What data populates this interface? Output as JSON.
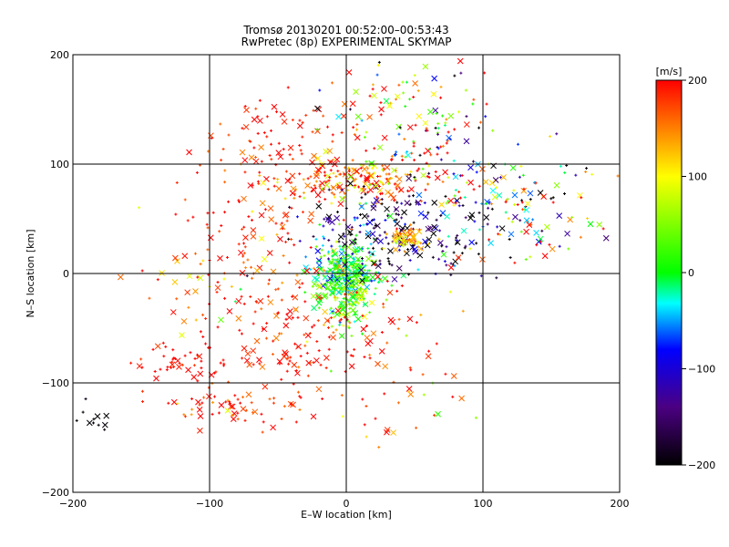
{
  "chart_data": {
    "type": "scatter",
    "title": "Tromsø 20130201 00:52:00–00:53:43",
    "subtitle": "RwPretec (8p) EXPERIMENTAL SKYMAP",
    "xlabel": "E–W location [km]",
    "ylabel": "N–S location [km]",
    "xlim": [
      -200,
      200
    ],
    "ylim": [
      -200,
      200
    ],
    "xticks": [
      "−200",
      "−100",
      "0",
      "100",
      "200"
    ],
    "yticks": [
      "−200",
      "−100",
      "0",
      "100",
      "200"
    ],
    "grid": true,
    "colorbar": {
      "label": "[m/s]",
      "min": -200,
      "max": 200,
      "ticks": [
        "200",
        "100",
        "0",
        "−100",
        "−200"
      ],
      "colormap": [
        "#000000",
        "#4b0082",
        "#0000ff",
        "#00ffff",
        "#00ff00",
        "#ffff00",
        "#ff0000"
      ]
    },
    "markers": [
      "x",
      "+"
    ],
    "clusters": [
      {
        "cx": 0,
        "cy": 0,
        "sx": 12,
        "sy": 15,
        "n": 320,
        "vmean": 5,
        "vsd": 40
      },
      {
        "cx": 0,
        "cy": -25,
        "sx": 8,
        "sy": 12,
        "n": 90,
        "vmean": 40,
        "vsd": 40
      },
      {
        "cx": 5,
        "cy": 85,
        "sx": 25,
        "sy": 10,
        "n": 180,
        "vmean": 160,
        "vsd": 50
      },
      {
        "cx": 40,
        "cy": 40,
        "sx": 35,
        "sy": 20,
        "n": 220,
        "vmean": -150,
        "vsd": 70
      },
      {
        "cx": 45,
        "cy": 32,
        "sx": 6,
        "sy": 5,
        "n": 60,
        "vmean": 140,
        "vsd": 30
      },
      {
        "cx": 60,
        "cy": 120,
        "sx": 25,
        "sy": 35,
        "n": 150,
        "vmean": 50,
        "vsd": 180
      },
      {
        "cx": 130,
        "cy": 60,
        "sx": 25,
        "sy": 25,
        "n": 120,
        "vmean": 50,
        "vsd": 200
      },
      {
        "cx": -50,
        "cy": 120,
        "sx": 35,
        "sy": 25,
        "n": 80,
        "vmean": 190,
        "vsd": 25
      },
      {
        "cx": -60,
        "cy": 40,
        "sx": 30,
        "sy": 40,
        "n": 100,
        "vmean": 190,
        "vsd": 25
      },
      {
        "cx": -50,
        "cy": -60,
        "sx": 35,
        "sy": 30,
        "n": 140,
        "vmean": 190,
        "vsd": 25
      },
      {
        "cx": -120,
        "cy": -80,
        "sx": 15,
        "sy": 10,
        "n": 40,
        "vmean": 200,
        "vsd": 15
      },
      {
        "cx": -80,
        "cy": -125,
        "sx": 25,
        "sy": 10,
        "n": 60,
        "vmean": 180,
        "vsd": 40
      },
      {
        "cx": -185,
        "cy": -130,
        "sx": 10,
        "sy": 8,
        "n": 12,
        "vmean": -200,
        "vsd": 5
      },
      {
        "cx": 30,
        "cy": -80,
        "sx": 30,
        "sy": 40,
        "n": 80,
        "vmean": 170,
        "vsd": 50
      },
      {
        "cx": 15,
        "cy": 160,
        "sx": 20,
        "sy": 20,
        "n": 30,
        "vmean": 100,
        "vsd": 150
      },
      {
        "cx": -100,
        "cy": 5,
        "sx": 30,
        "sy": 30,
        "n": 40,
        "vmean": 150,
        "vsd": 60
      }
    ]
  }
}
